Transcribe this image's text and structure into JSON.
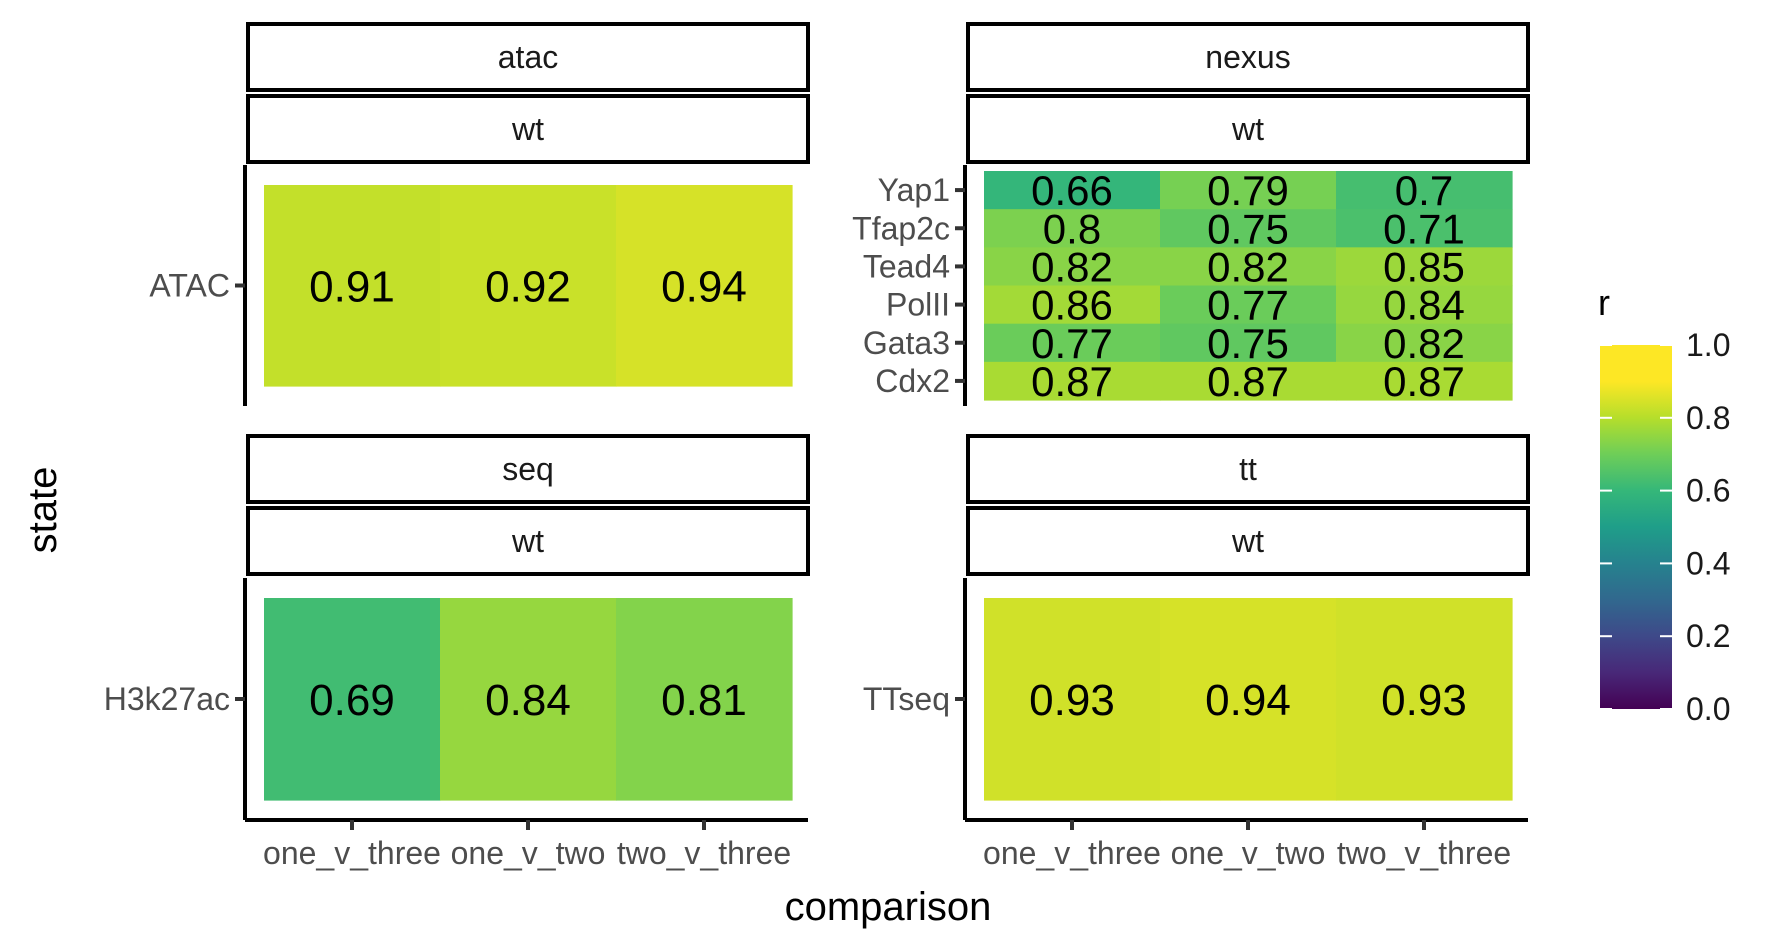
{
  "chart_data": {
    "type": "heatmap",
    "xlabel": "comparison",
    "ylabel": "state",
    "categories": [
      "one_v_three",
      "one_v_two",
      "two_v_three"
    ],
    "legend": {
      "title": "r",
      "position": "right",
      "range": [
        0,
        1
      ],
      "ticks": [
        "0.0",
        "0.2",
        "0.4",
        "0.6",
        "0.8",
        "1.0"
      ],
      "colormap": "viridis"
    },
    "panels": [
      {
        "strip_top": "atac",
        "strip_bottom": "wt",
        "rows": [
          {
            "state": "ATAC",
            "values": [
              0.91,
              0.92,
              0.94
            ],
            "labels": [
              "0.91",
              "0.92",
              "0.94"
            ]
          }
        ]
      },
      {
        "strip_top": "nexus",
        "strip_bottom": "wt",
        "rows": [
          {
            "state": "Yap1",
            "values": [
              0.66,
              0.79,
              0.7
            ],
            "labels": [
              "0.66",
              "0.79",
              "0.7"
            ]
          },
          {
            "state": "Tfap2c",
            "values": [
              0.8,
              0.75,
              0.71
            ],
            "labels": [
              "0.8",
              "0.75",
              "0.71"
            ]
          },
          {
            "state": "Tead4",
            "values": [
              0.82,
              0.82,
              0.85
            ],
            "labels": [
              "0.82",
              "0.82",
              "0.85"
            ]
          },
          {
            "state": "PolII",
            "values": [
              0.86,
              0.77,
              0.84
            ],
            "labels": [
              "0.86",
              "0.77",
              "0.84"
            ]
          },
          {
            "state": "Gata3",
            "values": [
              0.77,
              0.75,
              0.82
            ],
            "labels": [
              "0.77",
              "0.75",
              "0.82"
            ]
          },
          {
            "state": "Cdx2",
            "values": [
              0.87,
              0.87,
              0.87
            ],
            "labels": [
              "0.87",
              "0.87",
              "0.87"
            ]
          }
        ]
      },
      {
        "strip_top": "seq",
        "strip_bottom": "wt",
        "rows": [
          {
            "state": "H3k27ac",
            "values": [
              0.69,
              0.84,
              0.81
            ],
            "labels": [
              "0.69",
              "0.84",
              "0.81"
            ]
          }
        ]
      },
      {
        "strip_top": "tt",
        "strip_bottom": "wt",
        "rows": [
          {
            "state": "TTseq",
            "values": [
              0.93,
              0.94,
              0.93
            ],
            "labels": [
              "0.93",
              "0.94",
              "0.93"
            ]
          }
        ]
      }
    ]
  }
}
